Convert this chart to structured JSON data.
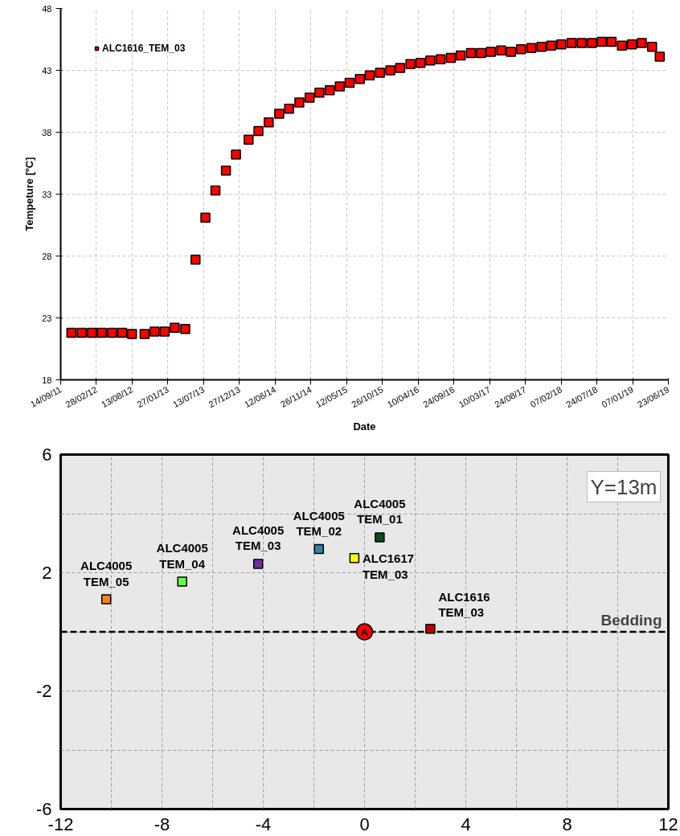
{
  "chart_data": [
    {
      "type": "scatter",
      "xlabel": "Date",
      "ylabel": "Tempeture [ºC]",
      "x": [
        "2011-11-03",
        "2011-12-21",
        "2012-02-07",
        "2012-03-24",
        "2012-05-11",
        "2012-06-27",
        "2012-08-12",
        "2012-10-10",
        "2012-11-26",
        "2013-01-12",
        "2013-02-28",
        "2013-04-18",
        "2013-06-05",
        "2013-07-21",
        "2013-09-06",
        "2013-10-25",
        "2013-12-11",
        "2014-02-08",
        "2014-03-26",
        "2014-05-13",
        "2014-07-01",
        "2014-08-16",
        "2014-10-03",
        "2014-11-20",
        "2015-01-05",
        "2015-02-22",
        "2015-04-10",
        "2015-05-26",
        "2015-07-13",
        "2015-08-28",
        "2015-10-15",
        "2015-12-02",
        "2016-01-17",
        "2016-03-05",
        "2016-04-21",
        "2016-06-06",
        "2016-07-24",
        "2016-09-10",
        "2016-10-26",
        "2016-12-13",
        "2017-01-29",
        "2017-03-16",
        "2017-05-03",
        "2017-06-18",
        "2017-08-04",
        "2017-09-21",
        "2017-11-07",
        "2017-12-23",
        "2018-02-08",
        "2018-03-28",
        "2018-05-14",
        "2018-07-01",
        "2018-08-16",
        "2018-10-01",
        "2018-11-18",
        "2019-01-04",
        "2019-02-19",
        "2019-04-08",
        "2019-05-14"
      ],
      "series": [
        {
          "name": "ALC1616_TEM_03",
          "color": "#ff0000",
          "values": [
            21.8,
            21.8,
            21.8,
            21.8,
            21.8,
            21.8,
            21.7,
            21.7,
            21.9,
            21.9,
            22.2,
            22.1,
            27.7,
            31.1,
            33.3,
            34.9,
            36.2,
            37.4,
            38.1,
            38.8,
            39.5,
            39.9,
            40.4,
            40.8,
            41.2,
            41.4,
            41.7,
            42.0,
            42.3,
            42.6,
            42.8,
            43.0,
            43.2,
            43.5,
            43.6,
            43.8,
            43.9,
            44.0,
            44.2,
            44.4,
            44.4,
            44.5,
            44.6,
            44.5,
            44.7,
            44.8,
            44.9,
            45.0,
            45.1,
            45.2,
            45.2,
            45.2,
            45.3,
            45.3,
            45.0,
            45.1,
            45.2,
            44.9,
            44.1
          ]
        }
      ],
      "xlim": [
        "2011-09-14",
        "2019-06-23"
      ],
      "xticks": [
        {
          "value": "2011-09-14",
          "label": "14/09/11"
        },
        {
          "value": "2012-02-28",
          "label": "28/02/12"
        },
        {
          "value": "2012-08-13",
          "label": "13/08/12"
        },
        {
          "value": "2013-01-27",
          "label": "27/01/13"
        },
        {
          "value": "2013-07-13",
          "label": "13/07/13"
        },
        {
          "value": "2013-12-27",
          "label": "27/12/13"
        },
        {
          "value": "2014-06-12",
          "label": "12/06/14"
        },
        {
          "value": "2014-11-26",
          "label": "26/11/14"
        },
        {
          "value": "2015-05-12",
          "label": "12/05/15"
        },
        {
          "value": "2015-10-26",
          "label": "26/10/15"
        },
        {
          "value": "2016-04-10",
          "label": "10/04/16"
        },
        {
          "value": "2016-09-24",
          "label": "24/09/16"
        },
        {
          "value": "2017-03-10",
          "label": "10/03/17"
        },
        {
          "value": "2017-08-24",
          "label": "24/08/17"
        },
        {
          "value": "2018-02-07",
          "label": "07/02/18"
        },
        {
          "value": "2018-07-24",
          "label": "24/07/18"
        },
        {
          "value": "2019-01-07",
          "label": "07/01/19"
        },
        {
          "value": "2019-06-23",
          "label": "23/06/19"
        }
      ],
      "ylim": [
        18,
        48
      ],
      "yticks": [
        18,
        23,
        28,
        33,
        38,
        43,
        48
      ],
      "grid": true,
      "legend": "top left",
      "marker": "square"
    },
    {
      "type": "scatter",
      "annotations": [
        "Y=13m"
      ],
      "series": [
        {
          "name": "ALC4005\nTEM_05",
          "color": "#f58220",
          "x": [
            -10.2
          ],
          "values": [
            1.1
          ]
        },
        {
          "name": "ALC4005\nTEM_04",
          "color": "#66ff44",
          "x": [
            -7.2
          ],
          "values": [
            1.7
          ]
        },
        {
          "name": "ALC4005\nTEM_03",
          "color": "#7030a0",
          "x": [
            -4.2
          ],
          "values": [
            2.3
          ]
        },
        {
          "name": "ALC4005\nTEM_02",
          "color": "#31859c",
          "x": [
            -1.8
          ],
          "values": [
            2.8
          ]
        },
        {
          "name": "ALC4005\nTEM_01",
          "color": "#0b4d1a",
          "x": [
            0.6
          ],
          "values": [
            3.2
          ]
        },
        {
          "name": "ALC1617\nTEM_03",
          "color": "#ffff00",
          "x": [
            -0.4
          ],
          "values": [
            2.5
          ]
        },
        {
          "name": "ALC1616\nTEM_03",
          "color": "#c00000",
          "x": [
            2.6
          ],
          "values": [
            0.1
          ]
        },
        {
          "name": "A",
          "color": "#ff0000",
          "x": [
            0
          ],
          "values": [
            0
          ],
          "marker": "circle"
        }
      ],
      "xlim": [
        -12,
        12
      ],
      "xticks": [
        -12,
        {
          "value": -10,
          "label": null
        },
        -8,
        {
          "value": -6,
          "label": null
        },
        -4,
        {
          "value": -2,
          "label": null
        },
        0,
        {
          "value": 2,
          "label": null
        },
        4,
        {
          "value": 6,
          "label": null
        },
        8,
        {
          "value": 10,
          "label": null
        },
        12
      ],
      "ylim": [
        -6,
        6
      ],
      "yticks": [
        -6,
        {
          "value": -4,
          "label": null
        },
        -2,
        {
          "value": 0,
          "label": null
        },
        2,
        {
          "value": 4,
          "label": null
        },
        6
      ],
      "grid": true,
      "legend": false,
      "marker": "square",
      "ref_lines": [
        {
          "axis": "y",
          "value": 0,
          "label": "Bedding",
          "color": "#000000",
          "line_style": "dashed"
        }
      ]
    }
  ]
}
